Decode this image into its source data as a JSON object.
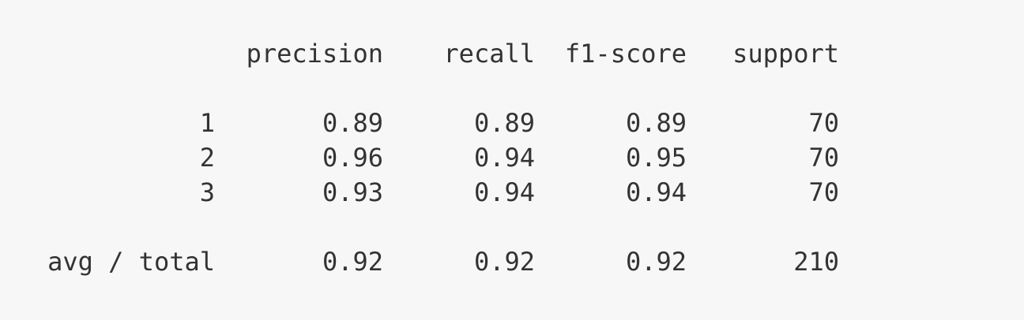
{
  "header": {
    "precision": "precision",
    "recall": "recall",
    "f1_score": "f1-score",
    "support": "support"
  },
  "rows": [
    {
      "label": "1",
      "precision": "0.89",
      "recall": "0.89",
      "f1_score": "0.89",
      "support": "70"
    },
    {
      "label": "2",
      "precision": "0.96",
      "recall": "0.94",
      "f1_score": "0.95",
      "support": "70"
    },
    {
      "label": "3",
      "precision": "0.93",
      "recall": "0.94",
      "f1_score": "0.94",
      "support": "70"
    }
  ],
  "summary": {
    "label": "avg / total",
    "precision": "0.92",
    "recall": "0.92",
    "f1_score": "0.92",
    "support": "210"
  }
}
